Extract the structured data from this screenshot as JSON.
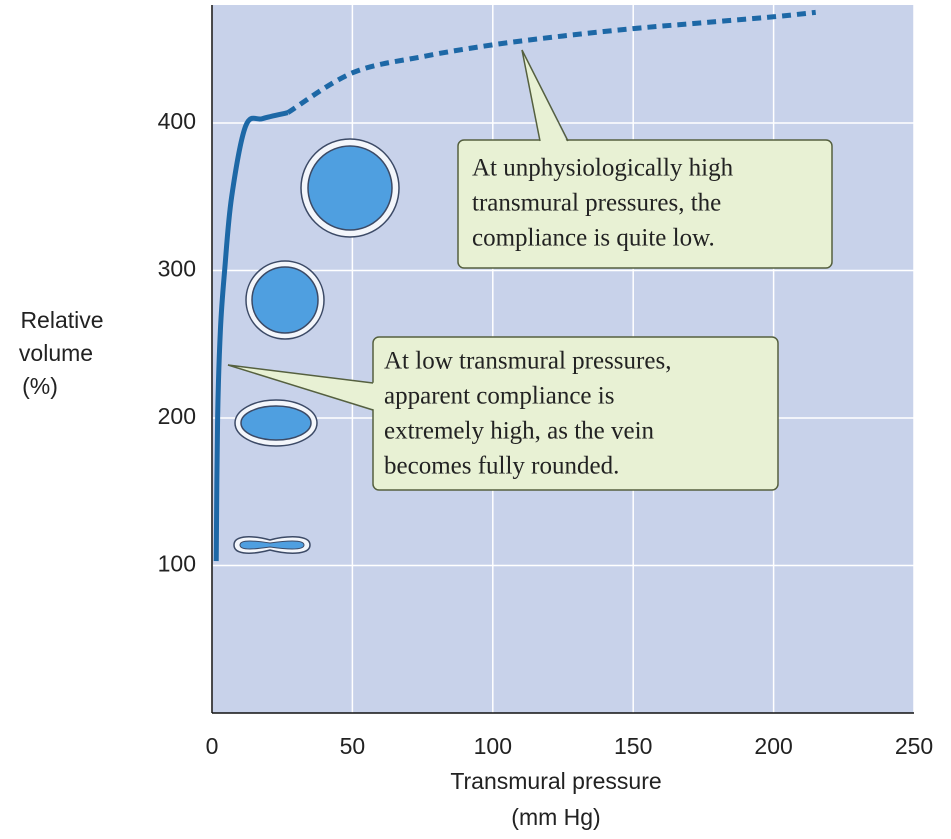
{
  "chart_data": {
    "type": "line",
    "x_label": [
      "Transmural pressure",
      "(mm Hg)"
    ],
    "y_label": [
      "Relative",
      "volume",
      "(%)"
    ],
    "xlim": [
      0,
      250
    ],
    "ylim": [
      0,
      480
    ],
    "xticks": [
      0,
      50,
      100,
      150,
      200,
      250
    ],
    "yticks": [
      100,
      200,
      300,
      400
    ],
    "grid": true,
    "series": [
      {
        "color": "#1d68a6",
        "dashed": false,
        "x": [
          1.5,
          2,
          3,
          4.5,
          7,
          12,
          18,
          27
        ],
        "values": [
          103,
          200,
          260,
          300,
          350,
          398,
          403,
          407
        ]
      },
      {
        "color": "#1d68a6",
        "dashed": true,
        "x": [
          27,
          50,
          75,
          100,
          125,
          150,
          175,
          200,
          215
        ],
        "values": [
          407,
          434,
          445,
          453,
          459,
          464,
          468,
          472,
          475
        ]
      }
    ],
    "annotations": [
      {
        "lines": [
          "At unphysiologically high",
          "transmural pressures, the",
          "compliance is quite low."
        ]
      },
      {
        "lines": [
          "At low transmural pressures,",
          "apparent compliance is",
          "extremely high, as the vein",
          "becomes fully rounded."
        ]
      }
    ]
  }
}
